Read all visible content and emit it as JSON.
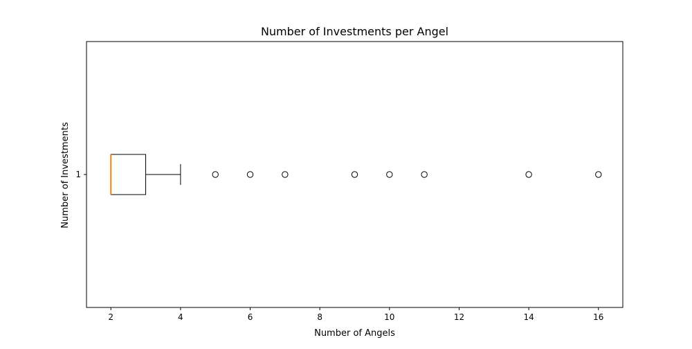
{
  "chart_data": {
    "type": "boxplot",
    "orientation": "horizontal",
    "title": "Number of Investments per Angel",
    "xlabel": "Number of Angels",
    "ylabel": "Number of Investments",
    "xlim": [
      1.3,
      16.7
    ],
    "xticks": [
      2,
      4,
      6,
      8,
      10,
      12,
      14,
      16
    ],
    "categories": [
      "1"
    ],
    "series": [
      {
        "whislo": 2,
        "q1": 2,
        "median": 2,
        "q3": 3,
        "whishi": 4,
        "fliers": [
          5,
          6,
          7,
          9,
          10,
          11,
          14,
          16
        ]
      }
    ],
    "grid": false,
    "colors": {
      "box": "#000000",
      "median": "#ff7f0e",
      "flier_edge": "#000000"
    }
  }
}
